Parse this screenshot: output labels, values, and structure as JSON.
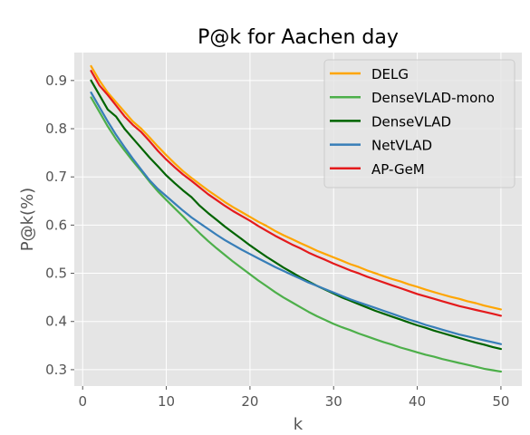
{
  "chart_data": {
    "type": "line",
    "title": "P@k for Aachen day",
    "xlabel": "k",
    "ylabel": "P@k(%)",
    "xlim": [
      -1,
      52.5
    ],
    "ylim": [
      0.266,
      0.958
    ],
    "xticks": [
      0,
      10,
      20,
      30,
      40,
      50
    ],
    "yticks": [
      0.3,
      0.4,
      0.5,
      0.6,
      0.7,
      0.8,
      0.9
    ],
    "grid": true,
    "legend_position": "top-right",
    "x": [
      1,
      2,
      3,
      4,
      5,
      6,
      7,
      8,
      9,
      10,
      11,
      12,
      13,
      14,
      15,
      16,
      17,
      18,
      19,
      20,
      21,
      22,
      23,
      24,
      25,
      26,
      27,
      28,
      29,
      30,
      31,
      32,
      33,
      34,
      35,
      36,
      37,
      38,
      39,
      40,
      41,
      42,
      43,
      44,
      45,
      46,
      47,
      48,
      49,
      50
    ],
    "series": [
      {
        "name": "DELG",
        "color": "#FFA500",
        "values": [
          0.93,
          0.9,
          0.875,
          0.855,
          0.835,
          0.815,
          0.8,
          0.782,
          0.763,
          0.745,
          0.728,
          0.712,
          0.698,
          0.685,
          0.672,
          0.66,
          0.648,
          0.637,
          0.627,
          0.617,
          0.607,
          0.598,
          0.588,
          0.579,
          0.571,
          0.563,
          0.555,
          0.547,
          0.54,
          0.533,
          0.526,
          0.519,
          0.513,
          0.506,
          0.5,
          0.494,
          0.488,
          0.483,
          0.477,
          0.472,
          0.466,
          0.461,
          0.456,
          0.451,
          0.447,
          0.442,
          0.438,
          0.433,
          0.429,
          0.425
        ]
      },
      {
        "name": "DenseVLAD-mono",
        "color": "#4DAF4A",
        "values": [
          0.865,
          0.835,
          0.805,
          0.778,
          0.755,
          0.733,
          0.712,
          0.69,
          0.67,
          0.652,
          0.635,
          0.618,
          0.6,
          0.583,
          0.567,
          0.552,
          0.538,
          0.524,
          0.511,
          0.498,
          0.485,
          0.473,
          0.461,
          0.45,
          0.44,
          0.43,
          0.42,
          0.411,
          0.403,
          0.395,
          0.388,
          0.382,
          0.375,
          0.369,
          0.363,
          0.357,
          0.352,
          0.346,
          0.341,
          0.336,
          0.331,
          0.327,
          0.322,
          0.318,
          0.314,
          0.31,
          0.306,
          0.302,
          0.299,
          0.296
        ]
      },
      {
        "name": "DenseVLAD",
        "color": "#006400",
        "values": [
          0.9,
          0.87,
          0.84,
          0.825,
          0.8,
          0.78,
          0.76,
          0.74,
          0.722,
          0.703,
          0.687,
          0.672,
          0.658,
          0.64,
          0.625,
          0.611,
          0.597,
          0.584,
          0.571,
          0.558,
          0.546,
          0.534,
          0.523,
          0.512,
          0.502,
          0.492,
          0.483,
          0.474,
          0.466,
          0.458,
          0.45,
          0.443,
          0.436,
          0.429,
          0.422,
          0.416,
          0.41,
          0.404,
          0.398,
          0.392,
          0.387,
          0.381,
          0.376,
          0.371,
          0.366,
          0.361,
          0.356,
          0.352,
          0.347,
          0.343
        ]
      },
      {
        "name": "NetVLAD",
        "color": "#377EB8",
        "values": [
          0.875,
          0.845,
          0.815,
          0.787,
          0.762,
          0.738,
          0.715,
          0.693,
          0.675,
          0.66,
          0.645,
          0.63,
          0.616,
          0.604,
          0.592,
          0.58,
          0.569,
          0.559,
          0.549,
          0.54,
          0.531,
          0.522,
          0.513,
          0.505,
          0.497,
          0.489,
          0.481,
          0.474,
          0.467,
          0.46,
          0.453,
          0.446,
          0.44,
          0.434,
          0.428,
          0.422,
          0.416,
          0.41,
          0.404,
          0.399,
          0.393,
          0.388,
          0.383,
          0.378,
          0.373,
          0.369,
          0.365,
          0.361,
          0.357,
          0.353
        ]
      },
      {
        "name": "AP-GeM",
        "color": "#E41A1C",
        "values": [
          0.92,
          0.89,
          0.87,
          0.848,
          0.826,
          0.808,
          0.793,
          0.774,
          0.754,
          0.736,
          0.72,
          0.705,
          0.692,
          0.678,
          0.664,
          0.652,
          0.64,
          0.629,
          0.619,
          0.609,
          0.598,
          0.588,
          0.578,
          0.569,
          0.56,
          0.552,
          0.543,
          0.535,
          0.528,
          0.52,
          0.513,
          0.506,
          0.5,
          0.493,
          0.487,
          0.481,
          0.475,
          0.469,
          0.463,
          0.457,
          0.452,
          0.447,
          0.442,
          0.437,
          0.432,
          0.428,
          0.424,
          0.42,
          0.416,
          0.412
        ]
      }
    ]
  }
}
